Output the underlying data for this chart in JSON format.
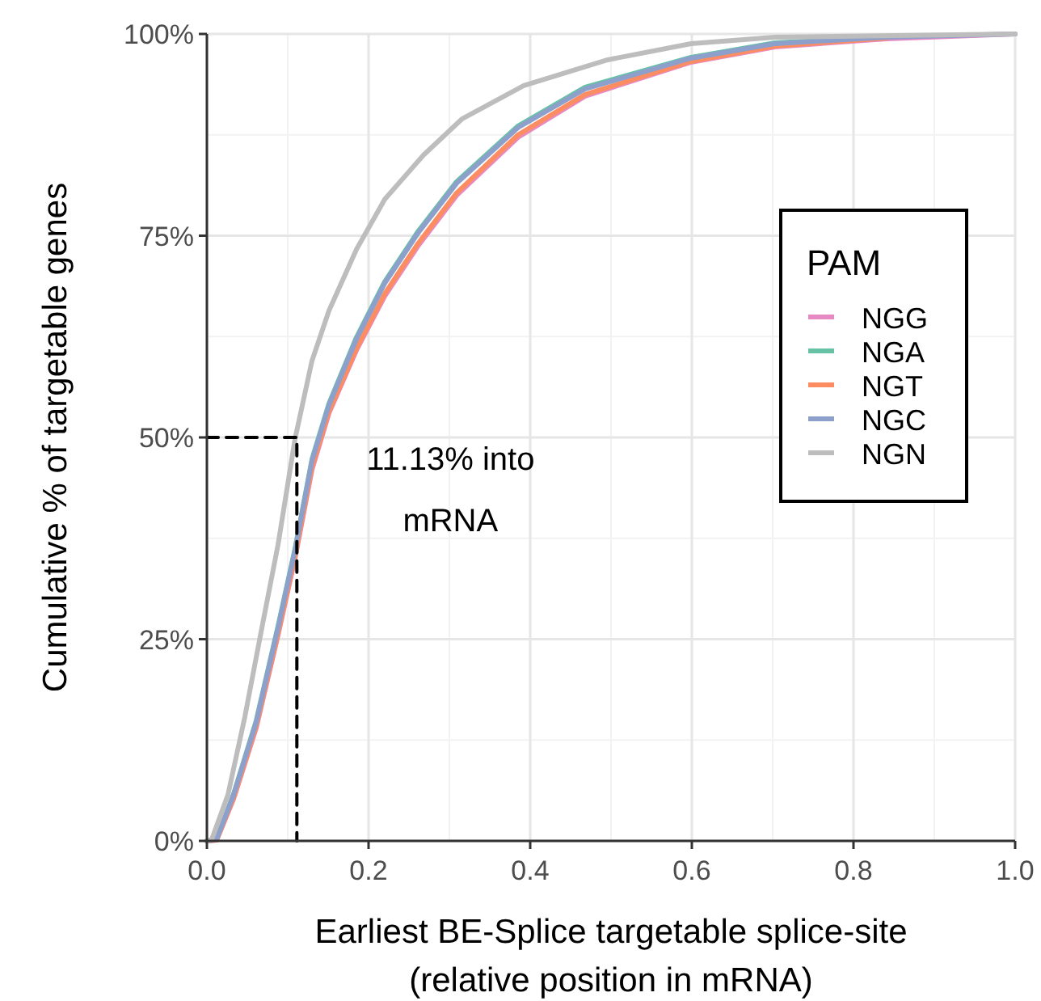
{
  "chart_data": {
    "type": "line",
    "xlabel": "Earliest BE-Splice targetable splice-site\n(relative position in mRNA)",
    "ylabel": "Cumulative % of targetable genes",
    "legend_title": "PAM",
    "legend": "right",
    "grid": true,
    "line_style": "solid",
    "marker": "none",
    "xlim": [
      0,
      1
    ],
    "ylim": [
      0,
      100
    ],
    "xticks": [
      {
        "value": 0,
        "label": "0.0"
      },
      0.2,
      0.4,
      0.6,
      0.8,
      {
        "value": 1,
        "label": "1.0"
      }
    ],
    "yticks": [
      {
        "value": 0,
        "label": "0%"
      },
      {
        "value": 25,
        "label": "25%"
      },
      {
        "value": 50,
        "label": "50%"
      },
      {
        "value": 75,
        "label": "75%"
      },
      {
        "value": 100,
        "label": "100%"
      }
    ],
    "x": [
      0,
      0.012,
      0.033,
      0.061,
      0.088,
      0.109,
      0.13,
      0.151,
      0.185,
      0.22,
      0.261,
      0.309,
      0.385,
      0.468,
      0.599,
      0.703,
      0.841,
      1
    ],
    "series": [
      {
        "name": "NGG",
        "color": "#e78ac3",
        "values": [
          0,
          0.1,
          5.2,
          14,
          25.5,
          35,
          46,
          53,
          60.8,
          67.5,
          73.7,
          80,
          87.2,
          92.3,
          96.5,
          98.4,
          99.4,
          100
        ]
      },
      {
        "name": "NGA",
        "color": "#66c2a5",
        "values": [
          0,
          0.2,
          5.8,
          14.9,
          26.6,
          36.2,
          47.3,
          54.2,
          62.4,
          69.3,
          75.5,
          81.7,
          88.6,
          93.4,
          97.1,
          98.9,
          99.6,
          null
        ]
      },
      {
        "name": "NGT",
        "color": "#fc8d62",
        "values": [
          0,
          0.1,
          5.3,
          14.2,
          25.7,
          35.2,
          46.3,
          53.2,
          61,
          67.8,
          74,
          80.3,
          87.5,
          92.5,
          96.6,
          98.5,
          99.5,
          null
        ]
      },
      {
        "name": "NGC",
        "color": "#8da0cb",
        "values": [
          0,
          0.2,
          5.7,
          14.7,
          26.4,
          36,
          47.1,
          54,
          62.2,
          69.1,
          75.3,
          81.5,
          88.4,
          93.2,
          97,
          98.8,
          99.6,
          100
        ]
      },
      {
        "name": "NGN",
        "color": "#bdbdbd",
        "x": [
          0,
          0.006,
          0.026,
          0.047,
          0.068,
          0.088,
          0.109,
          0.13,
          0.151,
          0.185,
          0.22,
          0.268,
          0.316,
          0.392,
          0.496,
          0.599,
          0.703,
          1
        ],
        "values": [
          0,
          0.2,
          5.7,
          15.4,
          26.4,
          36.7,
          49.8,
          59.5,
          65.7,
          73.3,
          79.5,
          85,
          89.5,
          93.6,
          96.8,
          98.8,
          99.6,
          100
        ]
      },
      {
        "type": "line",
        "color": "#000000",
        "line_style": "dashed",
        "x": [
          0,
          0.1113,
          0.1113
        ],
        "values": [
          50,
          50,
          0
        ]
      }
    ],
    "annotations": [
      {
        "text": "11.13% into mRNA",
        "x": 0.1113,
        "y": 50
      }
    ]
  }
}
